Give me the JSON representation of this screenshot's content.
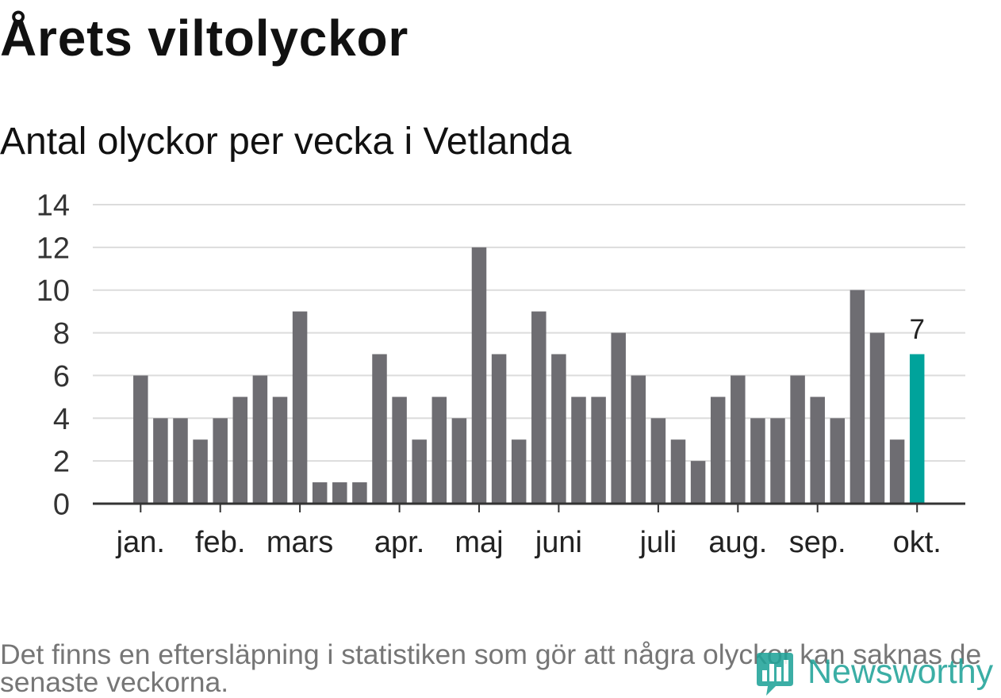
{
  "chart_data": {
    "type": "bar",
    "title": "Årets viltolyckor",
    "subtitle": "Antal olyckor per vecka i Vetlanda",
    "xlabel": "",
    "ylabel": "",
    "ylim": [
      0,
      14
    ],
    "y_ticks": [
      0,
      2,
      4,
      6,
      8,
      10,
      12,
      14
    ],
    "grid": true,
    "legend": "none",
    "values": [
      6,
      4,
      4,
      3,
      4,
      5,
      6,
      5,
      9,
      1,
      1,
      1,
      7,
      5,
      3,
      5,
      4,
      12,
      7,
      3,
      9,
      7,
      5,
      5,
      8,
      6,
      4,
      3,
      2,
      5,
      6,
      4,
      4,
      6,
      5,
      4,
      10,
      8,
      3,
      7
    ],
    "x_ticks": [
      {
        "label": "jan.",
        "index": 0
      },
      {
        "label": "feb.",
        "index": 4
      },
      {
        "label": "mars",
        "index": 8
      },
      {
        "label": "apr.",
        "index": 13
      },
      {
        "label": "maj",
        "index": 17
      },
      {
        "label": "juni",
        "index": 21
      },
      {
        "label": "juli",
        "index": 26
      },
      {
        "label": "aug.",
        "index": 30
      },
      {
        "label": "sep.",
        "index": 34
      },
      {
        "label": "okt.",
        "index": 39
      }
    ],
    "highlight_index": 39,
    "data_labels": [
      {
        "index": 39,
        "text": "7"
      }
    ],
    "bar_color": "#6e6d72",
    "highlight_color": "#00a39b"
  },
  "footer": {
    "note_lines": [
      "Det finns en eftersläpning i statistiken som gör att några olyckor kan saknas de",
      "senaste veckorna."
    ]
  },
  "logo": {
    "text": "Newsworthy",
    "icon": "newsworthy-bubble-chart-icon"
  }
}
